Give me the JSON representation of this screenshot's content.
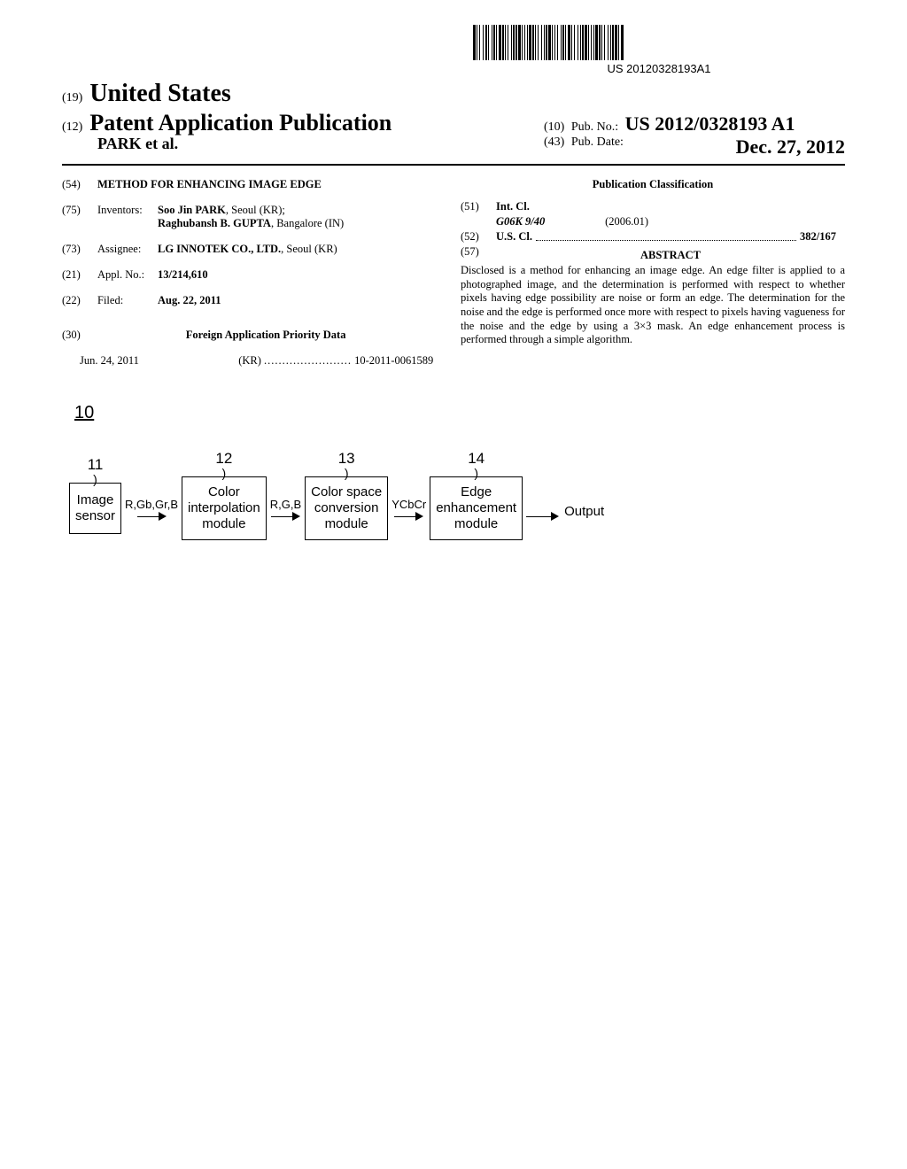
{
  "barcode_text": "US 20120328193A1",
  "header": {
    "code19": "(19)",
    "country": "United States",
    "code12": "(12)",
    "pub_type": "Patent Application Publication",
    "authors": "PARK et al.",
    "code10": "(10)",
    "pubno_label": "Pub. No.:",
    "pubno": "US 2012/0328193 A1",
    "code43": "(43)",
    "pubdate_label": "Pub. Date:",
    "pubdate": "Dec. 27, 2012"
  },
  "left": {
    "code54": "(54)",
    "title": "METHOD FOR ENHANCING IMAGE EDGE",
    "code75": "(75)",
    "inventors_label": "Inventors:",
    "inventor1_name": "Soo Jin PARK",
    "inventor1_loc": ", Seoul (KR);",
    "inventor2_name": "Raghubansh B. GUPTA",
    "inventor2_loc": ", Bangalore (IN)",
    "code73": "(73)",
    "assignee_label": "Assignee:",
    "assignee": "LG INNOTEK CO., LTD.",
    "assignee_loc": ", Seoul (KR)",
    "code21": "(21)",
    "applno_label": "Appl. No.:",
    "applno": "13/214,610",
    "code22": "(22)",
    "filed_label": "Filed:",
    "filed": "Aug. 22, 2011",
    "code30": "(30)",
    "foreign_title": "Foreign Application Priority Data",
    "priority_date": "Jun. 24, 2011",
    "priority_cc": "(KR)",
    "priority_dots": "........................",
    "priority_num": "10-2011-0061589"
  },
  "right": {
    "classification": "Publication Classification",
    "code51": "(51)",
    "intcl_label": "Int. Cl.",
    "intcl_code": "G06K 9/40",
    "intcl_date": "(2006.01)",
    "code52": "(52)",
    "uscl_label": "U.S. Cl.",
    "uscl_code": "382/167",
    "code57": "(57)",
    "abstract_label": "ABSTRACT",
    "abstract": "Disclosed is a method for enhancing an image edge. An edge filter is applied to a photographed image, and the determination is performed with respect to whether pixels having edge possibility are noise or form an edge. The determination for the noise and the edge is performed once more with respect to pixels having vagueness for the noise and the edge by using a 3×3 mask. An edge enhancement process is performed through a simple algorithm."
  },
  "figure": {
    "ref": "10",
    "blocks": [
      {
        "num": "11",
        "lines": [
          "Image",
          "sensor"
        ]
      },
      {
        "num": "12",
        "lines": [
          "Color",
          "interpolation",
          "module"
        ]
      },
      {
        "num": "13",
        "lines": [
          "Color space",
          "conversion",
          "module"
        ]
      },
      {
        "num": "14",
        "lines": [
          "Edge",
          "enhancement",
          "module"
        ]
      }
    ],
    "signals": [
      "R,Gb,Gr,B",
      "R,G,B",
      "YCbCr",
      ""
    ],
    "output": "Output"
  },
  "colors": {
    "bg": "#ffffff",
    "fg": "#000000"
  }
}
